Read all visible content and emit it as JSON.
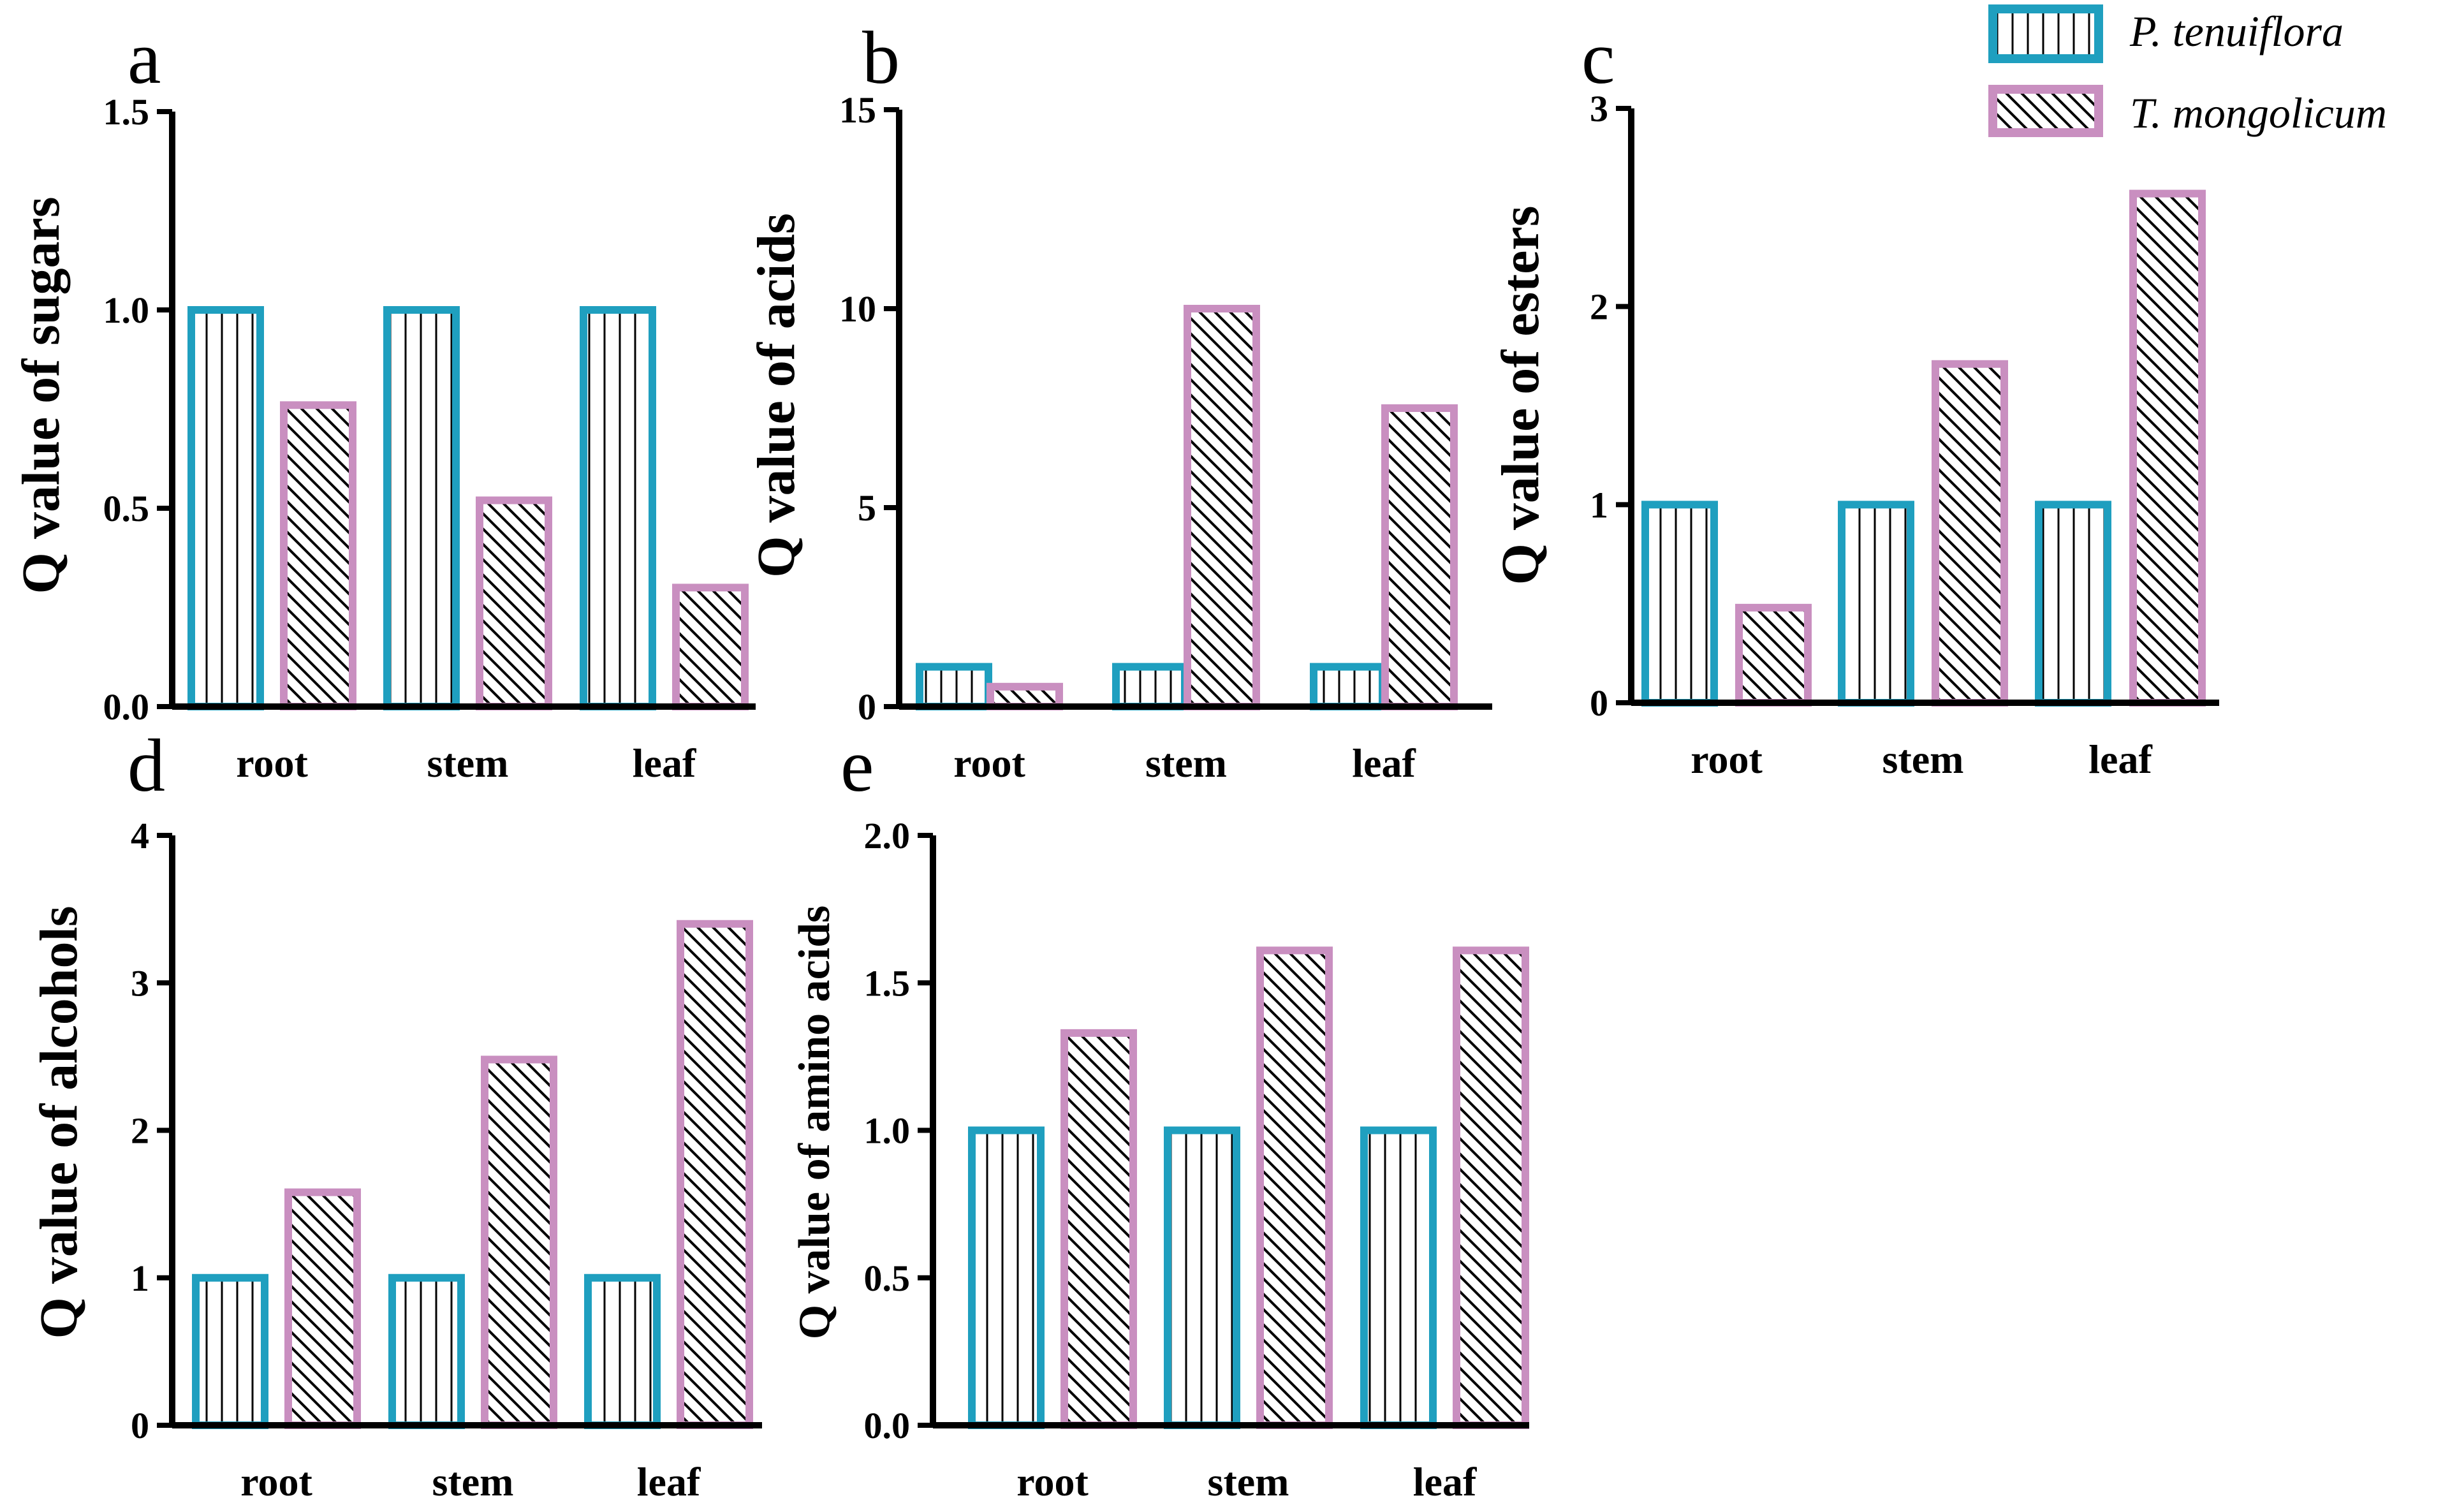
{
  "legend": [
    {
      "name": "P. tenuiflora",
      "color": "#1f9fbf",
      "pattern": "vertical"
    },
    {
      "name": "T. mongolicum",
      "color": "#c98fc0",
      "pattern": "diagonal"
    }
  ],
  "chart_data": [
    {
      "type": "bar",
      "letter": "a",
      "ylabel": "Q value of sugars",
      "categories": [
        "root",
        "stem",
        "leaf"
      ],
      "ylim": [
        0,
        1.5
      ],
      "yticks": [
        "0.0",
        "0.5",
        "1.0",
        "1.5"
      ],
      "series": [
        {
          "name": "P. tenuiflora",
          "values": [
            1.0,
            1.0,
            1.0
          ]
        },
        {
          "name": "T. mongolicum",
          "values": [
            0.76,
            0.52,
            0.3
          ]
        }
      ]
    },
    {
      "type": "bar",
      "letter": "b",
      "ylabel": "Q value of acids",
      "categories": [
        "root",
        "stem",
        "leaf"
      ],
      "ylim": [
        0,
        15
      ],
      "yticks": [
        "0",
        "5",
        "10",
        "15"
      ],
      "series": [
        {
          "name": "P. tenuiflora",
          "values": [
            1.0,
            1.0,
            1.0
          ]
        },
        {
          "name": "T. mongolicum",
          "values": [
            0.5,
            10.0,
            7.5
          ]
        }
      ]
    },
    {
      "type": "bar",
      "letter": "c",
      "ylabel": "Q value of esters",
      "categories": [
        "root",
        "stem",
        "leaf"
      ],
      "ylim": [
        0,
        3
      ],
      "yticks": [
        "0",
        "1",
        "2",
        "3"
      ],
      "series": [
        {
          "name": "P. tenuiflora",
          "values": [
            1.0,
            1.0,
            1.0
          ]
        },
        {
          "name": "T. mongolicum",
          "values": [
            0.48,
            1.71,
            2.57
          ]
        }
      ]
    },
    {
      "type": "bar",
      "letter": "d",
      "ylabel": "Q value of alcohols",
      "categories": [
        "root",
        "stem",
        "leaf"
      ],
      "ylim": [
        0,
        4
      ],
      "yticks": [
        "0",
        "1",
        "2",
        "3",
        "4"
      ],
      "series": [
        {
          "name": "P. tenuiflora",
          "values": [
            1.0,
            1.0,
            1.0
          ]
        },
        {
          "name": "T. mongolicum",
          "values": [
            1.58,
            2.48,
            3.4
          ]
        }
      ]
    },
    {
      "type": "bar",
      "letter": "e",
      "ylabel": "Q value of amino acids",
      "categories": [
        "root",
        "stem",
        "leaf"
      ],
      "ylim": [
        0,
        2.0
      ],
      "yticks": [
        "0.0",
        "0.5",
        "1.0",
        "1.5",
        "2.0"
      ],
      "series": [
        {
          "name": "P. tenuiflora",
          "values": [
            1.0,
            1.0,
            1.0
          ]
        },
        {
          "name": "T. mongolicum",
          "values": [
            1.33,
            1.61,
            1.61
          ]
        }
      ]
    }
  ]
}
